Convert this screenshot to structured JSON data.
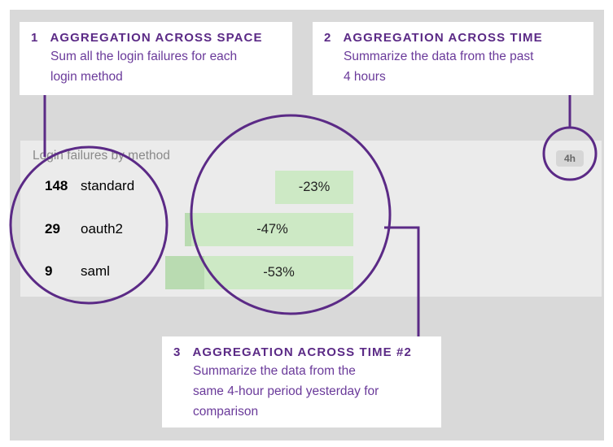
{
  "callouts": {
    "space": {
      "num": "1",
      "title": "AGGREGATION ACROSS SPACE",
      "desc_line1": "Sum all the login failures for each",
      "desc_line2": "login method"
    },
    "time": {
      "num": "2",
      "title": "AGGREGATION ACROSS TIME",
      "desc_line1": "Summarize the data from the past",
      "desc_line2": "4 hours"
    },
    "time2": {
      "num": "3",
      "title": "AGGREGATION ACROSS TIME #2",
      "desc_line1": "Summarize the data from the",
      "desc_line2": "same 4-hour period yesterday for",
      "desc_line3": "comparison"
    }
  },
  "panel": {
    "title": "Login failures by method",
    "time_badge": "4h",
    "rows": [
      {
        "count": "148",
        "method": "standard",
        "change": "-23%"
      },
      {
        "count": "29",
        "method": "oauth2",
        "change": "-47%"
      },
      {
        "count": "9",
        "method": "saml",
        "change": "-53%"
      }
    ]
  },
  "colors": {
    "accent": "#5b2a86",
    "bar": "#cde9c5",
    "background": "#d9d9d9"
  }
}
